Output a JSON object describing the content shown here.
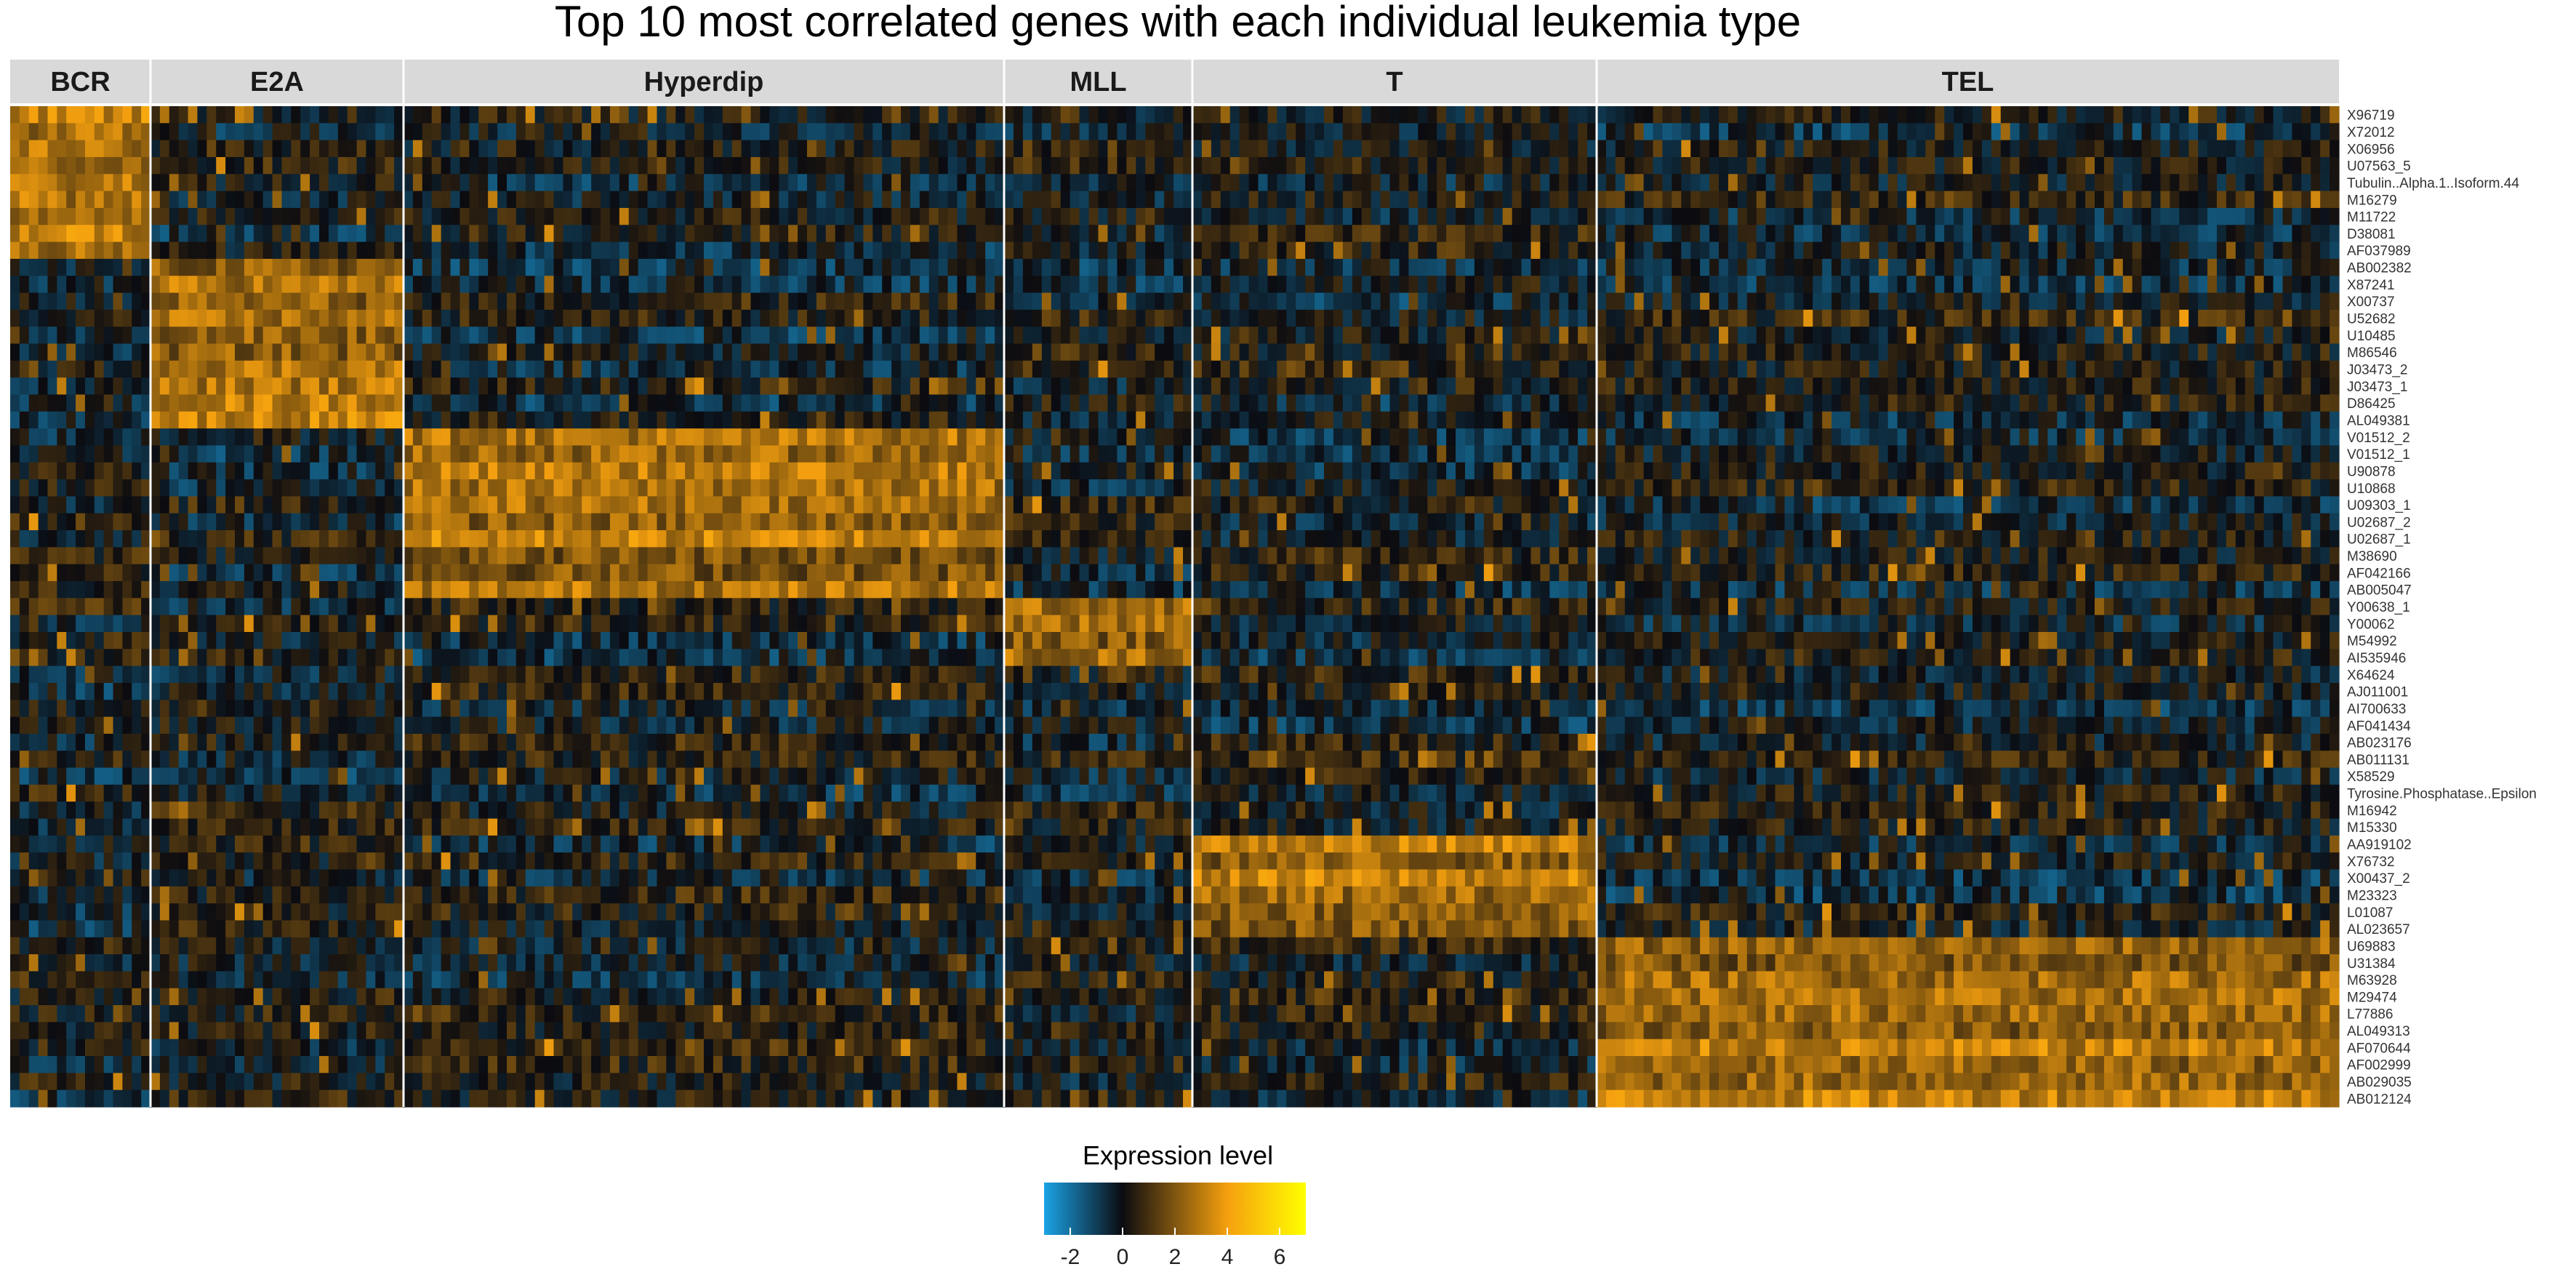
{
  "chart_data": {
    "type": "heatmap",
    "title": "Top 10 most correlated genes with each individual leukemia type",
    "groups": [
      {
        "name": "BCR",
        "samples": 15
      },
      {
        "name": "E2A",
        "samples": 27
      },
      {
        "name": "Hyperdip",
        "samples": 64
      },
      {
        "name": "MLL",
        "samples": 20
      },
      {
        "name": "T",
        "samples": 43
      },
      {
        "name": "TEL",
        "samples": 79
      }
    ],
    "genes": [
      "X96719",
      "X72012",
      "X06956",
      "U07563_5",
      "Tubulin..Alpha.1..Isoform.44",
      "M16279",
      "M11722",
      "D38081",
      "AF037989",
      "AB002382",
      "X87241",
      "X00737",
      "U52682",
      "U10485",
      "M86546",
      "J03473_2",
      "J03473_1",
      "D86425",
      "AL049381",
      "V01512_2",
      "V01512_1",
      "U90878",
      "U10868",
      "U09303_1",
      "U02687_2",
      "U02687_1",
      "M38690",
      "AF042166",
      "AB005047",
      "Y00638_1",
      "Y00062",
      "M54992",
      "AI535946",
      "X64624",
      "AJ011001",
      "AI700633",
      "AF041434",
      "AB023176",
      "AB011131",
      "X58529",
      "Tyrosine.Phosphatase..Epsilon",
      "M16942",
      "M15330",
      "AA919102",
      "X76732",
      "X00437_2",
      "M23323",
      "L01087",
      "AL023657",
      "U69883",
      "U31384",
      "M63928",
      "M29474",
      "L77886",
      "AL049313",
      "AF070644",
      "AF002999",
      "AB029035",
      "AB012124"
    ],
    "gene_blocks": [
      {
        "group": "BCR",
        "rows": [
          0,
          8
        ]
      },
      {
        "group": "E2A",
        "rows": [
          9,
          18
        ]
      },
      {
        "group": "Hyperdip",
        "rows": [
          19,
          28
        ]
      },
      {
        "group": "MLL",
        "rows": [
          29,
          32
        ]
      },
      {
        "group": "T",
        "rows": [
          43,
          48
        ]
      },
      {
        "group": "TEL",
        "rows": [
          49,
          58
        ]
      }
    ],
    "value_range": [
      -3,
      7
    ],
    "legend": {
      "title": "Expression level",
      "ticks": [
        "-2",
        "0",
        "2",
        "4",
        "6"
      ],
      "tick_values": [
        -2,
        0,
        2,
        4,
        6
      ],
      "placement": "bottom"
    },
    "colorscale": [
      "#1aa3e6",
      "#0b0b10",
      "#f5a00f",
      "#ffff00"
    ]
  }
}
